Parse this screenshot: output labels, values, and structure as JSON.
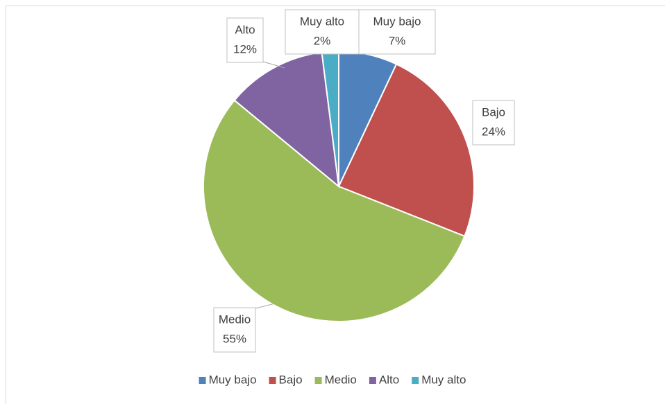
{
  "chart_data": {
    "type": "pie",
    "categories": [
      "Muy bajo",
      "Bajo",
      "Medio",
      "Alto",
      "Muy alto"
    ],
    "values": [
      7,
      24,
      55,
      12,
      2
    ],
    "value_labels": [
      "7%",
      "24%",
      "55%",
      "12%",
      "2%"
    ],
    "colors": [
      "#4f81bd",
      "#c0504d",
      "#9bbb59",
      "#8064a2",
      "#4bacc6"
    ],
    "legend": "bottom"
  }
}
